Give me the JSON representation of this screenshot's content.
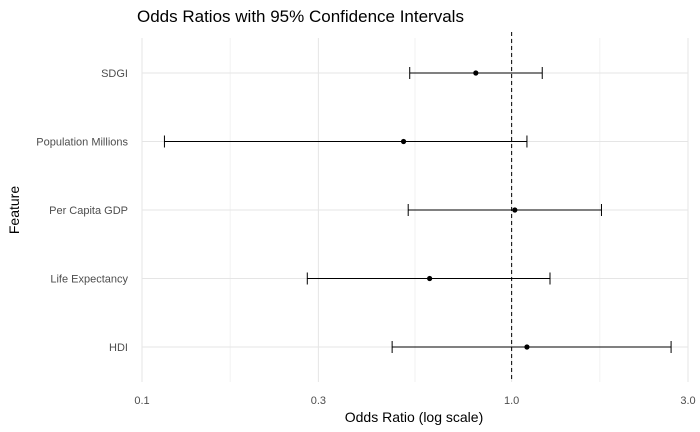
{
  "chart_data": {
    "type": "forest",
    "title": "Odds Ratios with 95% Confidence Intervals",
    "xlabel": "Odds Ratio (log scale)",
    "ylabel": "Feature",
    "x_scale": "log10",
    "xlim": [
      0.1,
      3.0
    ],
    "x_ticks": [
      0.1,
      0.3,
      1.0,
      3.0
    ],
    "x_tick_labels": [
      "0.1",
      "0.3",
      "1.0",
      "3.0"
    ],
    "reference_line": 1.0,
    "grid": true,
    "categories": [
      "SDGI",
      "Population Millions",
      "Per Capita GDP",
      "Life Expectancy",
      "HDI"
    ],
    "points": [
      {
        "feature": "SDGI",
        "odds_ratio": 0.8,
        "ci_low": 0.53,
        "ci_high": 1.21
      },
      {
        "feature": "Population Millions",
        "odds_ratio": 0.51,
        "ci_low": 0.115,
        "ci_high": 1.1
      },
      {
        "feature": "Per Capita GDP",
        "odds_ratio": 1.02,
        "ci_low": 0.525,
        "ci_high": 1.75
      },
      {
        "feature": "Life Expectancy",
        "odds_ratio": 0.6,
        "ci_low": 0.28,
        "ci_high": 1.27
      },
      {
        "feature": "HDI",
        "odds_ratio": 1.1,
        "ci_low": 0.475,
        "ci_high": 2.7
      }
    ],
    "colors": {
      "point": "#000000",
      "errorbar": "#000000",
      "grid_major": "#e5e5e5",
      "grid_minor": "#f2f2f2",
      "reference": "#000000"
    }
  }
}
